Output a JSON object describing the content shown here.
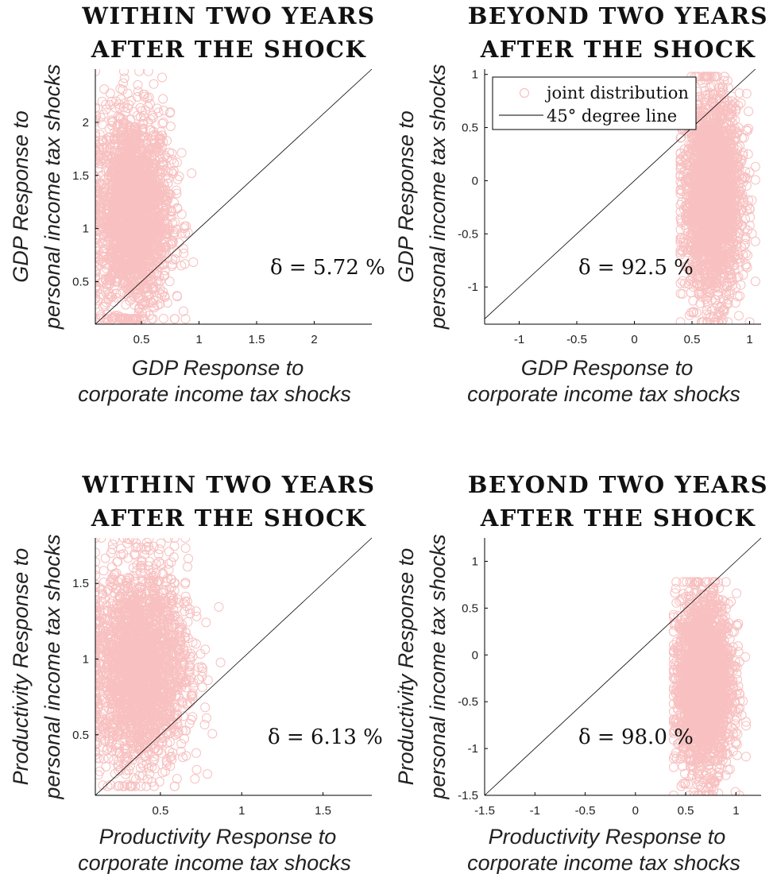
{
  "colors": {
    "marker": "#f8c0c0",
    "line": "#000000",
    "axis": "#000000"
  },
  "chart_data": [
    {
      "type": "scatter",
      "title": [
        "WITHIN TWO YEARS",
        "AFTER THE SHOCK"
      ],
      "xlabel": [
        "GDP Response to",
        "corporate income tax shocks"
      ],
      "ylabel": [
        "GDP Response to",
        "personal income tax shocks"
      ],
      "xlim": [
        0.1,
        2.5
      ],
      "ylim": [
        0.1,
        2.5
      ],
      "xticks": [
        0.5,
        1,
        1.5,
        2
      ],
      "xtick_labels": [
        "0.5",
        "1",
        "1.5",
        "2"
      ],
      "yticks": [
        0.5,
        1,
        1.5,
        2
      ],
      "ytick_labels": [
        "0.5",
        "1",
        "1.5",
        "2"
      ],
      "cloud": {
        "x_range": [
          0.1,
          0.95
        ],
        "y_range": [
          0.15,
          2.48
        ],
        "x_center": 0.42,
        "y_center": 1.15
      },
      "annotation": "δ = 5.72 %",
      "series": [
        {
          "name": "joint distribution"
        },
        {
          "name": "45° degree line"
        }
      ]
    },
    {
      "type": "scatter",
      "title": [
        "BEYOND TWO YEARS",
        "AFTER THE SHOCK"
      ],
      "xlabel": [
        "GDP Response to",
        "corporate income tax shocks"
      ],
      "ylabel": [
        "GDP Response to",
        "personal income tax shocks"
      ],
      "xlim": [
        -1.3,
        1.1
      ],
      "ylim": [
        -1.35,
        1.05
      ],
      "xticks": [
        -1,
        -0.5,
        0,
        0.5,
        1
      ],
      "xtick_labels": [
        "-1",
        "-0.5",
        "0",
        "0.5",
        "1"
      ],
      "yticks": [
        -1,
        -0.5,
        0,
        0.5,
        1
      ],
      "ytick_labels": [
        "-1",
        "-0.5",
        "0",
        "0.5",
        "1"
      ],
      "cloud": {
        "x_range": [
          0.4,
          1.05
        ],
        "y_range": [
          -1.33,
          0.98
        ],
        "x_center": 0.68,
        "y_center": -0.15
      },
      "annotation": "δ = 92.5 %",
      "legend": {
        "position": "top-left",
        "entries": [
          "joint distribution",
          "45° degree line"
        ]
      },
      "series": [
        {
          "name": "joint distribution"
        },
        {
          "name": "45° degree line"
        }
      ]
    },
    {
      "type": "scatter",
      "title": [
        "WITHIN TWO YEARS",
        "AFTER THE SHOCK"
      ],
      "xlabel": [
        "Productivity Response to",
        "corporate income tax shocks"
      ],
      "ylabel": [
        "Productivity Response to",
        "personal income tax shocks"
      ],
      "xlim": [
        0.1,
        1.8
      ],
      "ylim": [
        0.1,
        1.8
      ],
      "xticks": [
        0.5,
        1,
        1.5
      ],
      "xtick_labels": [
        "0.5",
        "1",
        "1.5"
      ],
      "yticks": [
        0.5,
        1,
        1.5
      ],
      "ytick_labels": [
        "0.5",
        "1",
        "1.5"
      ],
      "cloud": {
        "x_range": [
          0.1,
          0.87
        ],
        "y_range": [
          0.16,
          1.8
        ],
        "x_center": 0.37,
        "y_center": 0.95
      },
      "annotation": "δ = 6.13 %",
      "series": [
        {
          "name": "joint distribution"
        },
        {
          "name": "45° degree line"
        }
      ]
    },
    {
      "type": "scatter",
      "title": [
        "BEYOND TWO YEARS",
        "AFTER THE SHOCK"
      ],
      "xlabel": [
        "Productivity Response to",
        "corporate income tax shocks"
      ],
      "ylabel": [
        "Productivity Response to",
        "personal income tax shocks"
      ],
      "xlim": [
        -1.5,
        1.25
      ],
      "ylim": [
        -1.5,
        1.25
      ],
      "xticks": [
        -1.5,
        -1,
        -0.5,
        0,
        0.5,
        1
      ],
      "xtick_labels": [
        "-1.5",
        "-1",
        "-0.5",
        "0",
        "0.5",
        "1"
      ],
      "yticks": [
        -1.5,
        -1,
        -0.5,
        0,
        0.5,
        1
      ],
      "ytick_labels": [
        "-1.5",
        "-1",
        "-0.5",
        "0",
        "0.5",
        "1"
      ],
      "cloud": {
        "x_range": [
          0.38,
          1.1
        ],
        "y_range": [
          -1.5,
          0.78
        ],
        "x_center": 0.68,
        "y_center": -0.3
      },
      "annotation": "δ = 98.0 %",
      "series": [
        {
          "name": "joint distribution"
        },
        {
          "name": "45° degree line"
        }
      ]
    }
  ]
}
